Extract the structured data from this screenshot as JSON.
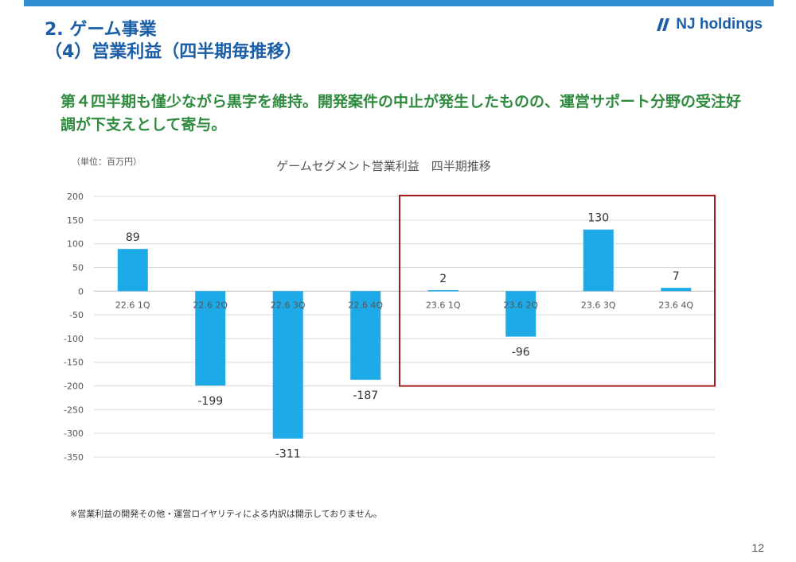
{
  "header": {
    "section_title": "2. ゲーム事業",
    "sub_title": "（4）営業利益（四半期毎推移）",
    "logo_text": "NJ holdings"
  },
  "headline": "第４四半期も僅少ながら黒字を維持。開発案件の中止が発生したものの、運営サポート分野の受注好調が下支えとして寄与。",
  "chart_data": {
    "type": "bar",
    "title": "ゲームセグメント営業利益　四半期推移",
    "unit_label": "（単位：百万円）",
    "categories": [
      "22.6 1Q",
      "22.6 2Q",
      "22.6 3Q",
      "22.6 4Q",
      "23.6 1Q",
      "23.6 2Q",
      "23.6 3Q",
      "23.6 4Q"
    ],
    "values": [
      89,
      -199,
      -311,
      -187,
      2,
      -96,
      130,
      7
    ],
    "data_labels": [
      "89",
      "-199",
      "-311",
      "-187",
      "2",
      "-96",
      "130",
      "7"
    ],
    "yticks": [
      200,
      150,
      100,
      50,
      0,
      -50,
      -100,
      -150,
      -200,
      -250,
      -300,
      -350
    ],
    "ylim": [
      -350,
      200
    ],
    "grid": true,
    "highlight_range": [
      "23.6 1Q",
      "23.6 4Q"
    ],
    "bar_color": "#1eaae7",
    "highlight_color": "#a31d1d"
  },
  "footnote": "※営業利益の開発その他・運営ロイヤリティによる内訳は開示しておりません。",
  "page_number": "12",
  "colors": {
    "title": "#1b5ea8",
    "headline": "#2e8b3e",
    "top_bar": "#2f8fd0"
  }
}
